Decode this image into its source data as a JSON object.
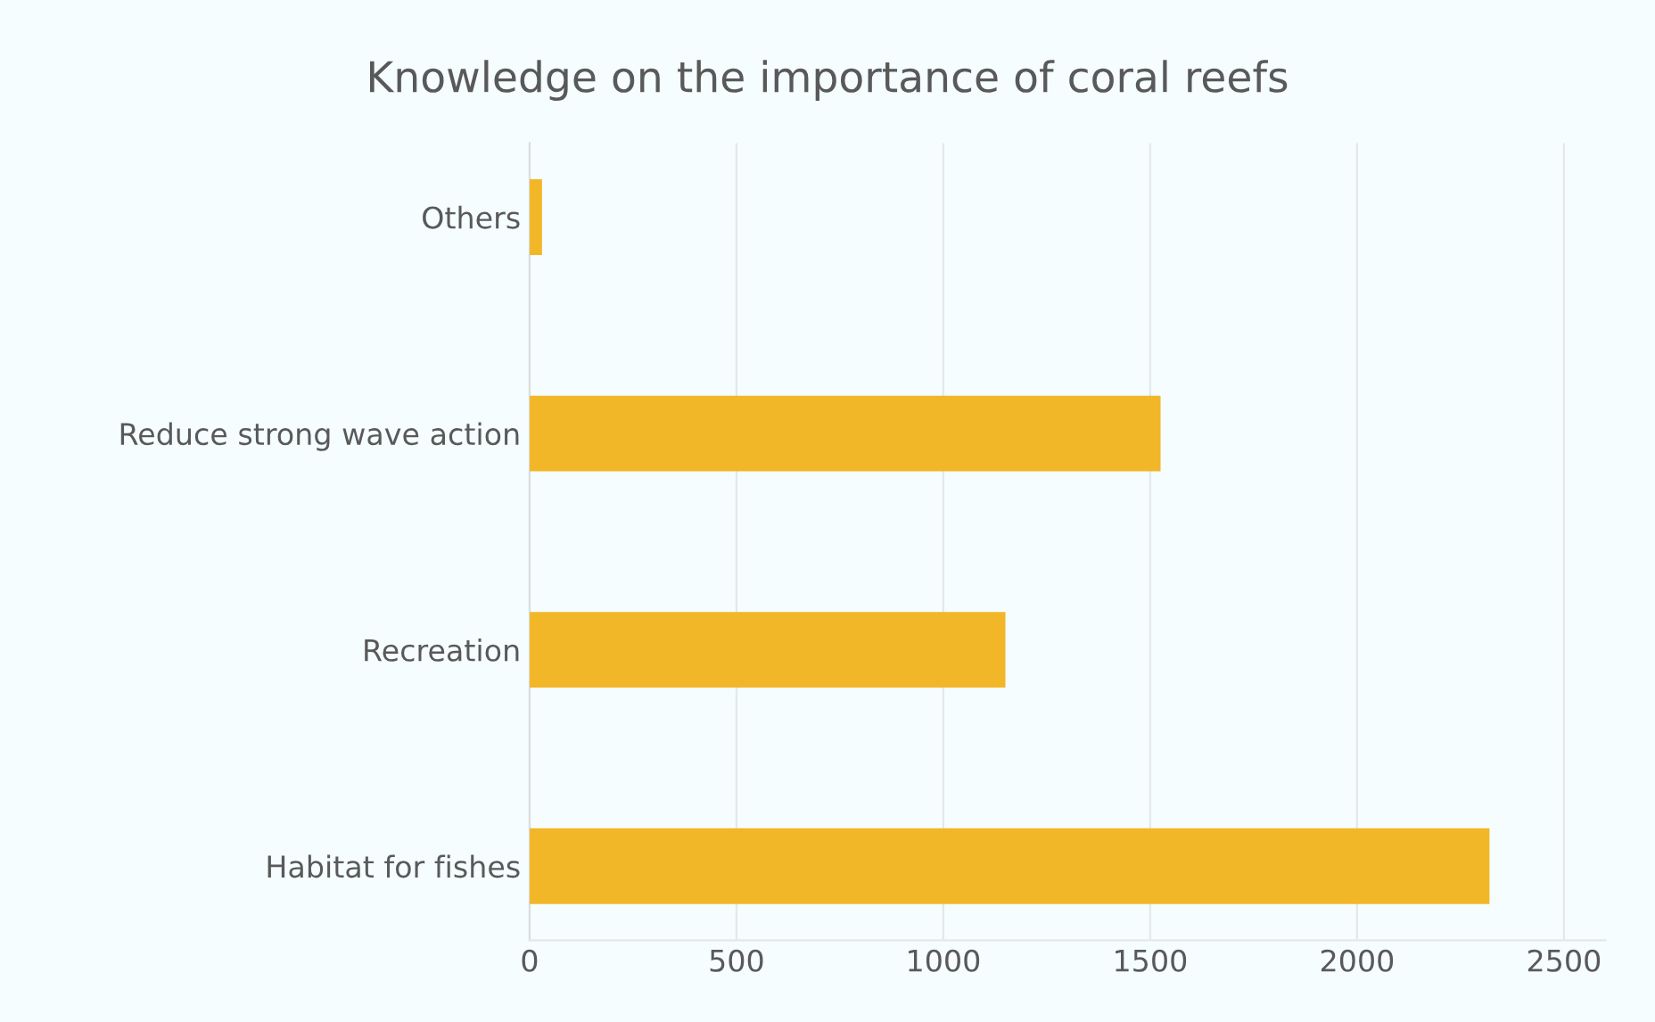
{
  "chart_data": {
    "type": "bar",
    "orientation": "horizontal",
    "title": "Knowledge on the importance of coral reefs",
    "categories": [
      "Others",
      "Reduce strong wave action",
      "Recreation",
      "Habitat for fishes"
    ],
    "values": [
      30,
      1525,
      1150,
      2320
    ],
    "color": "#f2b728",
    "xlim": [
      0,
      2600
    ],
    "xticks": [
      0,
      500,
      1000,
      1500,
      2000,
      2500
    ],
    "grid": "x"
  }
}
